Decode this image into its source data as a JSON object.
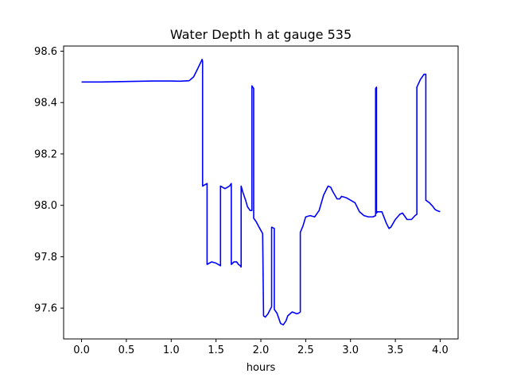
{
  "chart_data": {
    "type": "line",
    "title": "Water Depth h at gauge 535",
    "xlabel": "hours",
    "ylabel": "",
    "xlim": [
      -0.2,
      4.2
    ],
    "ylim": [
      97.48,
      98.62
    ],
    "xticks": [
      0.0,
      0.5,
      1.0,
      1.5,
      2.0,
      2.5,
      3.0,
      3.5,
      4.0
    ],
    "xtick_labels": [
      "0.0",
      "0.5",
      "1.0",
      "1.5",
      "2.0",
      "2.5",
      "3.0",
      "3.5",
      "4.0"
    ],
    "yticks": [
      97.6,
      97.8,
      98.0,
      98.2,
      98.4,
      98.6
    ],
    "ytick_labels": [
      "97.6",
      "97.8",
      "98.0",
      "98.2",
      "98.4",
      "98.6"
    ],
    "grid": false,
    "legend": "none",
    "series": [
      {
        "color": "#0000ff",
        "x": [
          0.0,
          0.2,
          0.5,
          0.8,
          1.0,
          1.1,
          1.2,
          1.25,
          1.3,
          1.345,
          1.35,
          1.35,
          1.4,
          1.4,
          1.45,
          1.5,
          1.55,
          1.55,
          1.6,
          1.65,
          1.67,
          1.67,
          1.7,
          1.73,
          1.75,
          1.77,
          1.78,
          1.78,
          1.8,
          1.83,
          1.85,
          1.88,
          1.9,
          1.9,
          1.92,
          1.92,
          1.95,
          1.98,
          2.02,
          2.03,
          2.03,
          2.05,
          2.08,
          2.1,
          2.12,
          2.12,
          2.15,
          2.15,
          2.18,
          2.2,
          2.22,
          2.25,
          2.28,
          2.3,
          2.35,
          2.4,
          2.42,
          2.44,
          2.44,
          2.47,
          2.5,
          2.55,
          2.6,
          2.65,
          2.7,
          2.75,
          2.78,
          2.8,
          2.85,
          2.88,
          2.9,
          2.95,
          3.0,
          3.05,
          3.1,
          3.15,
          3.2,
          3.25,
          3.28,
          3.28,
          3.29,
          3.29,
          3.3,
          3.35,
          3.4,
          3.43,
          3.45,
          3.5,
          3.55,
          3.58,
          3.6,
          3.63,
          3.68,
          3.72,
          3.74,
          3.74,
          3.78,
          3.82,
          3.84,
          3.84,
          3.88,
          3.92,
          3.94,
          3.96,
          4.0
        ],
        "y": [
          98.48,
          98.48,
          98.482,
          98.484,
          98.484,
          98.483,
          98.485,
          98.5,
          98.535,
          98.568,
          98.56,
          98.075,
          98.085,
          97.77,
          97.78,
          97.775,
          97.765,
          98.075,
          98.065,
          98.075,
          98.085,
          97.77,
          97.78,
          97.78,
          97.77,
          97.765,
          97.76,
          98.075,
          98.05,
          98.02,
          97.995,
          97.98,
          97.98,
          98.465,
          98.455,
          97.95,
          97.935,
          97.915,
          97.89,
          97.575,
          97.57,
          97.565,
          97.578,
          97.592,
          97.605,
          97.915,
          97.91,
          97.595,
          97.58,
          97.56,
          97.54,
          97.535,
          97.55,
          97.57,
          97.585,
          97.578,
          97.58,
          97.585,
          97.895,
          97.92,
          97.955,
          97.96,
          97.955,
          97.98,
          98.04,
          98.075,
          98.07,
          98.055,
          98.025,
          98.025,
          98.035,
          98.03,
          98.02,
          98.01,
          97.975,
          97.96,
          97.955,
          97.955,
          97.96,
          98.455,
          98.46,
          97.97,
          97.975,
          97.975,
          97.93,
          97.91,
          97.915,
          97.945,
          97.965,
          97.97,
          97.96,
          97.945,
          97.945,
          97.96,
          97.965,
          98.46,
          98.49,
          98.51,
          98.51,
          98.02,
          98.01,
          97.995,
          97.985,
          97.98,
          97.975
        ]
      }
    ]
  }
}
